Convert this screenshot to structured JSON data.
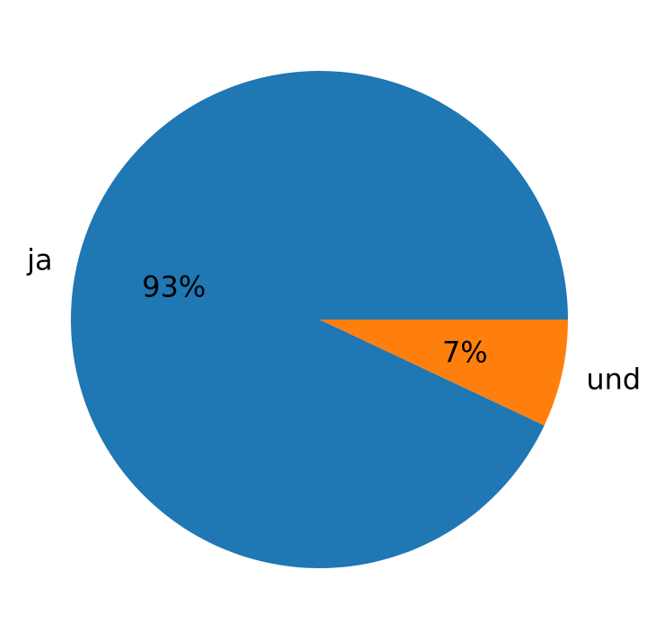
{
  "chart_data": {
    "type": "pie",
    "title": "",
    "labels": [
      "ja",
      "und"
    ],
    "values": [
      93,
      7
    ],
    "pct_labels": [
      "93%",
      "7%"
    ],
    "colors": [
      "#1f77b4",
      "#ff7f0e"
    ],
    "start_angle_deg": 0,
    "direction": "counterclockwise",
    "legend": "none"
  }
}
